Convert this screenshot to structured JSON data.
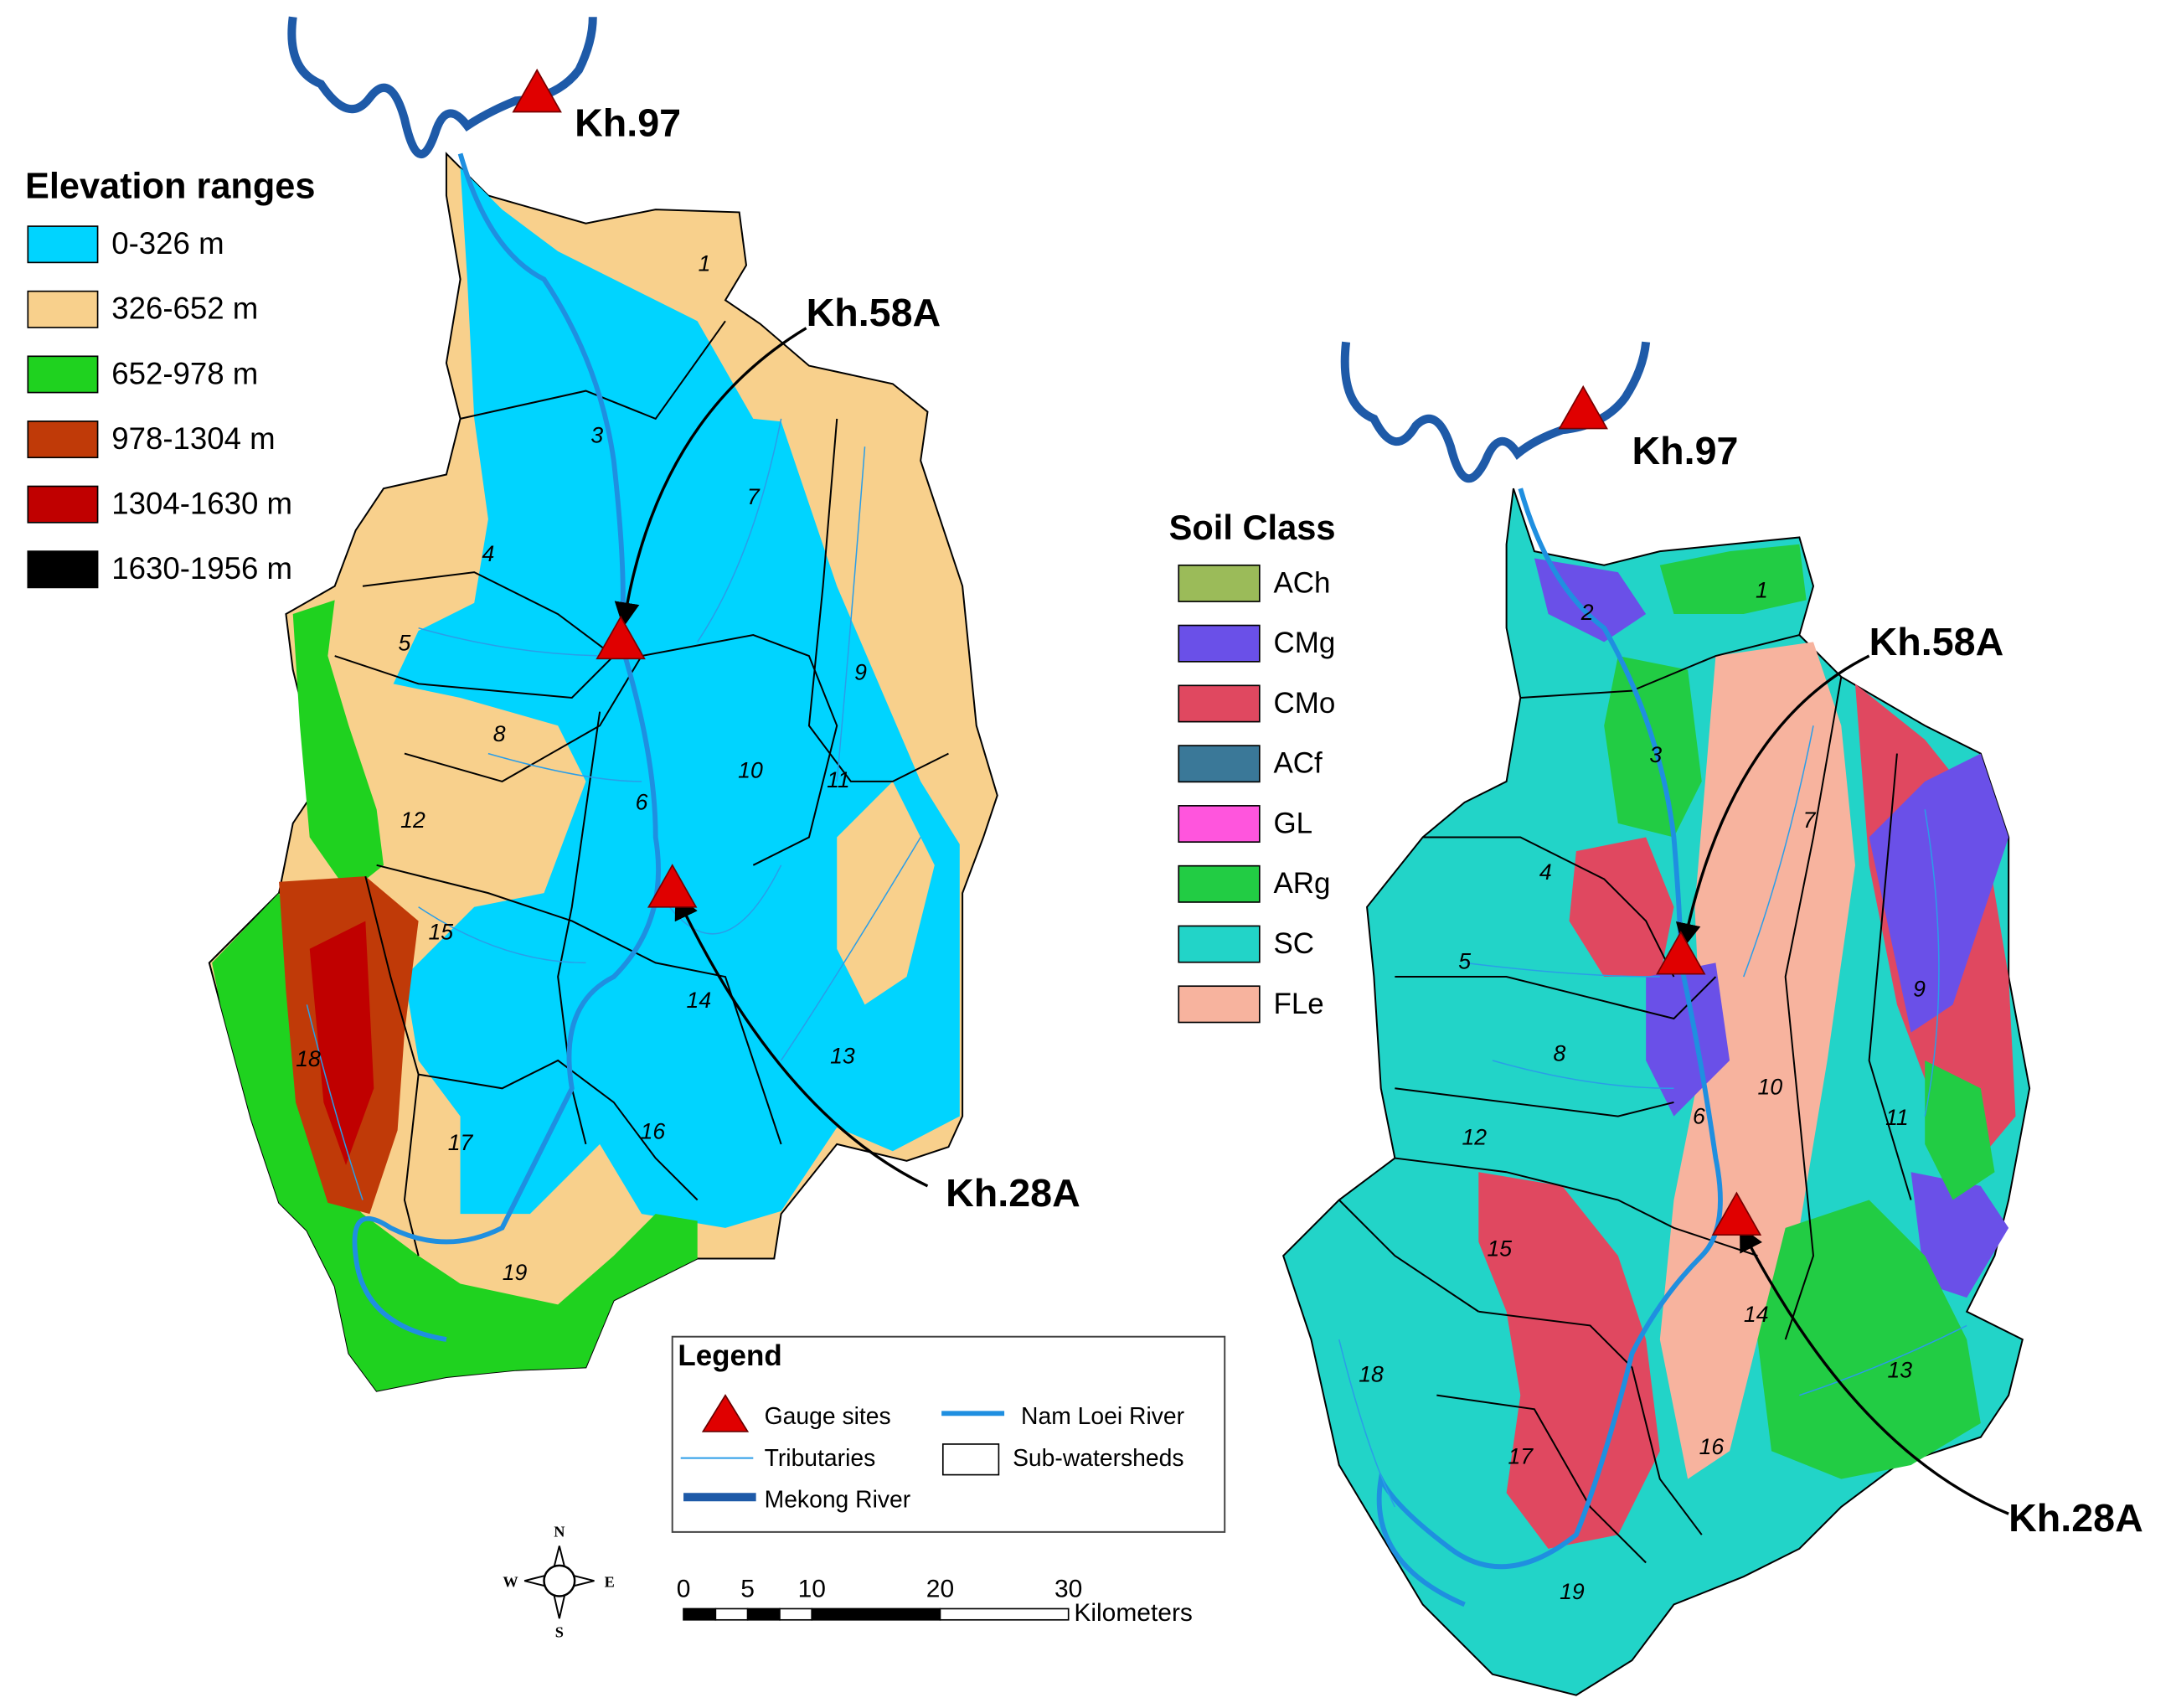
{
  "elevation_map": {
    "legend_title": "Elevation ranges",
    "classes": [
      {
        "label": "0-326 m",
        "color": "#00d4ff"
      },
      {
        "label": "326-652 m",
        "color": "#f8d08c"
      },
      {
        "label": "652-978 m",
        "color": "#1fd21f"
      },
      {
        "label": "978-1304 m",
        "color": "#c03a08"
      },
      {
        "label": "1304-1630 m",
        "color": "#c00000"
      },
      {
        "label": "1630-1956 m",
        "color": "#000000"
      }
    ],
    "gauges": [
      "Kh.97",
      "Kh.58A",
      "Kh.28A"
    ],
    "subwatersheds": [
      "1",
      "3",
      "4",
      "5",
      "6",
      "7",
      "8",
      "9",
      "10",
      "11",
      "12",
      "13",
      "14",
      "15",
      "16",
      "17",
      "18",
      "19"
    ]
  },
  "soil_map": {
    "legend_title": "Soil Class",
    "classes": [
      {
        "label": "ACh",
        "color": "#9bbb59"
      },
      {
        "label": "CMg",
        "color": "#6a50e8"
      },
      {
        "label": "CMo",
        "color": "#e04860"
      },
      {
        "label": "ACf",
        "color": "#3a7898"
      },
      {
        "label": "GL",
        "color": "#ff55dd"
      },
      {
        "label": "ARg",
        "color": "#22cc44"
      },
      {
        "label": "SC",
        "color": "#22d4c8"
      },
      {
        "label": "FLe",
        "color": "#f7b39e"
      }
    ],
    "gauges": [
      "Kh.97",
      "Kh.58A",
      "Kh.28A"
    ],
    "subwatersheds": [
      "1",
      "2",
      "3",
      "4",
      "5",
      "6",
      "7",
      "8",
      "9",
      "10",
      "11",
      "12",
      "13",
      "14",
      "15",
      "16",
      "17",
      "18",
      "19"
    ]
  },
  "legend": {
    "title": "Legend",
    "items": [
      "Gauge sites",
      "Nam Loei River",
      "Tributaries",
      "Sub-watersheds",
      "Mekong River"
    ]
  },
  "scale_bar": {
    "ticks": [
      0,
      5,
      10,
      20,
      30
    ],
    "unit": "Kilometers"
  },
  "compass": {
    "n": "N",
    "s": "S",
    "e": "E",
    "w": "W"
  }
}
